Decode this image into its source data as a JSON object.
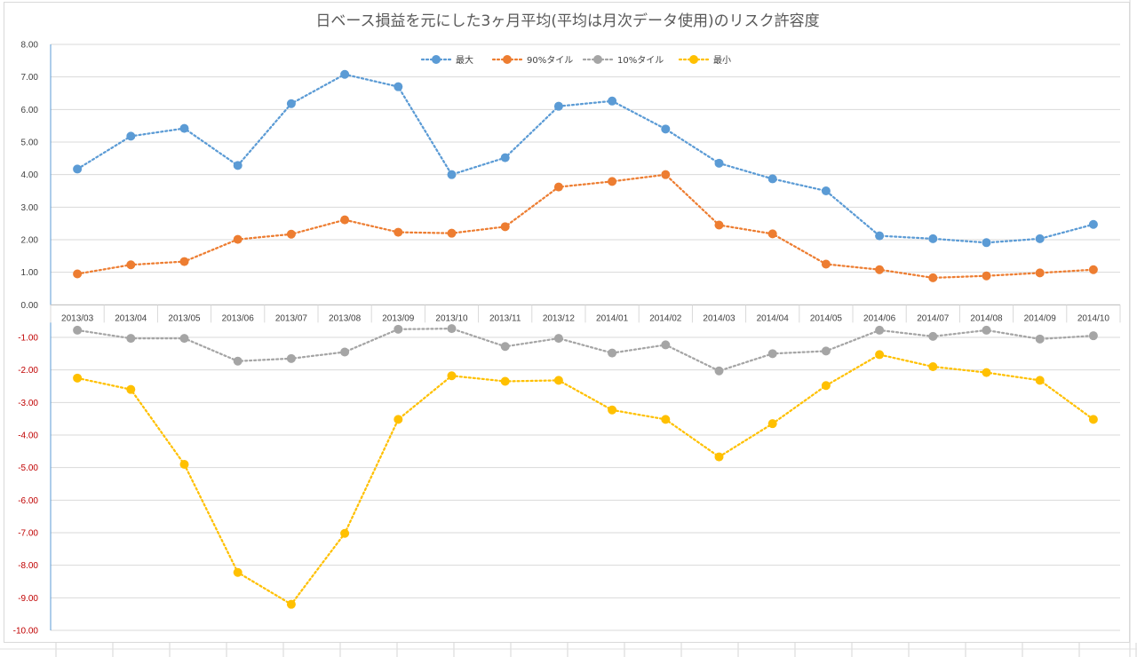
{
  "chart_data": {
    "type": "line",
    "title": "日ベース損益を元にした3ヶ月平均(平均は月次データ使用)のリスク許容度",
    "xlabel": "",
    "ylabel": "",
    "ylim": [
      -10,
      8
    ],
    "y_ticks": [
      "8.00",
      "7.00",
      "6.00",
      "5.00",
      "4.00",
      "3.00",
      "2.00",
      "1.00",
      "0.00",
      "-1.00",
      "-2.00",
      "-3.00",
      "-4.00",
      "-5.00",
      "-6.00",
      "-7.00",
      "-8.00",
      "-9.00",
      "-10.00"
    ],
    "categories": [
      "2013/03",
      "2013/04",
      "2013/05",
      "2013/06",
      "2013/07",
      "2013/08",
      "2013/09",
      "2013/10",
      "2013/11",
      "2013/12",
      "2014/01",
      "2014/02",
      "2014/03",
      "2014/04",
      "2014/05",
      "2014/06",
      "2014/07",
      "2014/08",
      "2014/09",
      "2014/10"
    ],
    "grid": true,
    "legend_position": "top",
    "series": [
      {
        "name": "最大",
        "color": "#5b9bd5",
        "values": [
          4.17,
          5.18,
          5.42,
          4.28,
          6.18,
          7.08,
          6.7,
          4.0,
          4.52,
          6.1,
          6.26,
          5.4,
          4.35,
          3.87,
          3.5,
          2.12,
          2.03,
          1.91,
          2.03,
          2.47
        ]
      },
      {
        "name": "90%タイル",
        "color": "#ed7d31",
        "values": [
          0.95,
          1.23,
          1.33,
          2.01,
          2.17,
          2.61,
          2.23,
          2.2,
          2.4,
          3.62,
          3.79,
          4.0,
          2.45,
          2.18,
          1.25,
          1.08,
          0.83,
          0.89,
          0.98,
          1.08
        ]
      },
      {
        "name": "10%タイル",
        "color": "#a5a5a5",
        "values": [
          -0.78,
          -1.03,
          -1.03,
          -1.73,
          -1.65,
          -1.45,
          -0.75,
          -0.73,
          -1.28,
          -1.03,
          -1.48,
          -1.23,
          -2.03,
          -1.5,
          -1.42,
          -0.78,
          -0.97,
          -0.78,
          -1.05,
          -0.95
        ]
      },
      {
        "name": "最小",
        "color": "#ffc000",
        "values": [
          -2.25,
          -2.6,
          -4.9,
          -8.22,
          -9.2,
          -7.02,
          -3.52,
          -2.18,
          -2.35,
          -2.32,
          -3.23,
          -3.52,
          -4.67,
          -3.65,
          -2.48,
          -1.53,
          -1.9,
          -2.08,
          -2.32,
          -3.52
        ]
      }
    ]
  }
}
